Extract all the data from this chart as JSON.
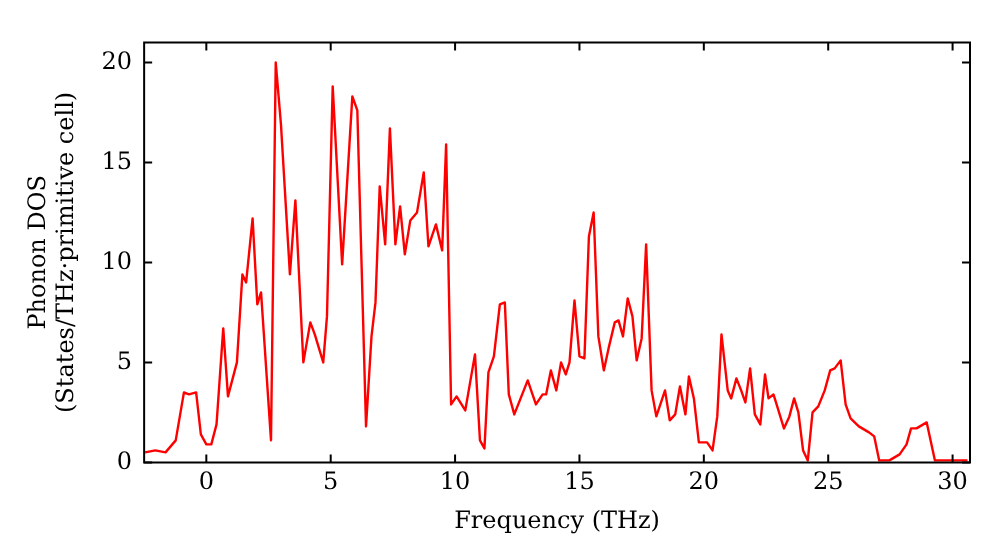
{
  "chart_data": {
    "type": "line",
    "xlabel": "Frequency (THz)",
    "ylabel": "Phonon DOS\n(States/THz·primitive cell)",
    "xlim": [
      -2.5,
      30.7
    ],
    "ylim": [
      0,
      21
    ],
    "xticks": [
      0,
      5,
      10,
      15,
      20,
      25,
      30
    ],
    "yticks": [
      0,
      5,
      10,
      15,
      20
    ],
    "grid": false,
    "legend": false,
    "marker": "none",
    "line_style": "solid",
    "x": [
      -2.46,
      -2.05,
      -1.64,
      -1.23,
      -0.9,
      -0.7,
      -0.41,
      -0.22,
      0,
      0.2,
      0.41,
      0.68,
      0.87,
      1.23,
      1.45,
      1.6,
      1.86,
      2.05,
      2.2,
      2.6,
      2.79,
      3.0,
      3.36,
      3.58,
      3.9,
      4.18,
      4.36,
      4.7,
      4.85,
      5.08,
      5.46,
      5.87,
      6.07,
      6.42,
      6.64,
      6.8,
      6.97,
      7.19,
      7.38,
      7.6,
      7.79,
      7.98,
      8.2,
      8.47,
      8.74,
      8.93,
      9.23,
      9.48,
      9.64,
      9.84,
      10.06,
      10.41,
      10.8,
      11.0,
      11.18,
      11.34,
      11.56,
      11.8,
      12.0,
      12.16,
      12.38,
      12.92,
      13.25,
      13.52,
      13.66,
      13.85,
      14.07,
      14.26,
      14.45,
      14.6,
      14.8,
      15.0,
      15.2,
      15.38,
      15.57,
      15.76,
      15.98,
      16.17,
      16.42,
      16.57,
      16.75,
      16.94,
      17.13,
      17.3,
      17.5,
      17.68,
      17.9,
      18.09,
      18.44,
      18.63,
      18.85,
      19.04,
      19.26,
      19.4,
      19.6,
      19.8,
      20.13,
      20.35,
      20.54,
      20.71,
      20.96,
      21.1,
      21.31,
      21.5,
      21.67,
      21.86,
      22.05,
      22.27,
      22.46,
      22.6,
      22.8,
      22.95,
      23.22,
      23.44,
      23.63,
      23.8,
      23.99,
      24.18,
      24.37,
      24.6,
      24.86,
      25.08,
      25.26,
      25.5,
      25.7,
      25.9,
      26.23,
      26.64,
      26.85,
      27.05,
      27.46,
      27.87,
      28.15,
      28.33,
      28.55,
      28.96,
      29.29,
      29.65,
      30.6
    ],
    "series": [
      {
        "color": "#ff0000",
        "values": [
          0.5,
          0.6,
          0.5,
          1.1,
          3.5,
          3.4,
          3.5,
          1.4,
          0.9,
          0.9,
          1.9,
          6.7,
          3.3,
          5.0,
          9.4,
          9.0,
          12.2,
          7.9,
          8.5,
          1.1,
          20.0,
          16.9,
          9.4,
          13.1,
          5.0,
          7.0,
          6.4,
          5.0,
          7.3,
          18.8,
          9.9,
          18.3,
          17.6,
          1.8,
          6.3,
          8.0,
          13.8,
          10.9,
          16.7,
          10.9,
          12.8,
          10.4,
          12.1,
          12.5,
          14.5,
          10.8,
          11.9,
          10.6,
          15.9,
          2.9,
          3.3,
          2.6,
          5.4,
          1.1,
          0.7,
          4.5,
          5.3,
          7.9,
          8.0,
          3.4,
          2.4,
          4.1,
          2.9,
          3.4,
          3.4,
          4.6,
          3.6,
          5.0,
          4.4,
          5.0,
          8.1,
          5.3,
          5.2,
          11.3,
          12.5,
          6.3,
          4.6,
          5.7,
          7.0,
          7.1,
          6.3,
          8.2,
          7.3,
          5.1,
          6.2,
          10.9,
          3.6,
          2.3,
          3.6,
          2.1,
          2.4,
          3.8,
          2.4,
          4.3,
          3.2,
          1.0,
          1.0,
          0.6,
          2.3,
          6.4,
          3.6,
          3.2,
          4.2,
          3.6,
          3.0,
          4.7,
          2.4,
          1.9,
          4.4,
          3.2,
          3.4,
          2.8,
          1.7,
          2.3,
          3.2,
          2.5,
          0.6,
          0.1,
          2.5,
          2.8,
          3.6,
          4.6,
          4.7,
          5.1,
          2.9,
          2.2,
          1.8,
          1.5,
          1.3,
          0.1,
          0.1,
          0.4,
          0.9,
          1.7,
          1.7,
          2.0,
          0.1,
          0.1,
          0.1
        ]
      }
    ]
  }
}
